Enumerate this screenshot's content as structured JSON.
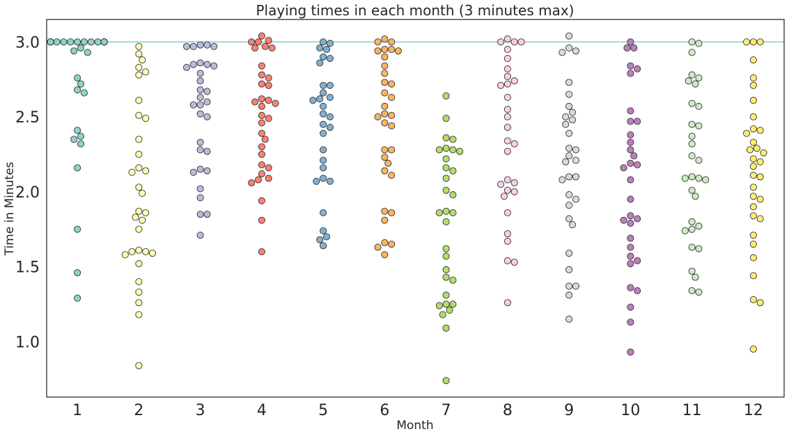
{
  "chart_data": {
    "type": "scatter",
    "subtype": "swarm",
    "title": "Playing times in each month (3 minutes max)",
    "xlabel": "Month",
    "ylabel": "Time in Minutes",
    "categories": [
      "1",
      "2",
      "3",
      "4",
      "5",
      "6",
      "7",
      "8",
      "9",
      "10",
      "11",
      "12"
    ],
    "ylim": [
      0.63,
      3.15
    ],
    "yticks": [
      "1.0",
      "1.5",
      "2.0",
      "2.5",
      "3.0"
    ],
    "yticks_values": [
      1.0,
      1.5,
      2.0,
      2.5,
      3.0
    ],
    "grid": false,
    "legend": "none",
    "reference_line": {
      "y": 3.0,
      "color": "#8dd3c7"
    },
    "point_edge_color": "#333333",
    "series": [
      {
        "category": "1",
        "color": "#8dd3c7",
        "values": [
          3.0,
          3.0,
          3.0,
          3.0,
          3.0,
          3.0,
          3.0,
          3.0,
          3.0,
          3.0,
          3.0,
          3.0,
          3.0,
          3.0,
          3.0,
          3.0,
          3.0,
          3.0,
          3.0,
          3.0,
          3.0,
          3.0,
          3.0,
          3.0,
          3.0,
          3.0,
          2.96,
          2.94,
          2.93,
          2.76,
          2.72,
          2.68,
          2.66,
          2.41,
          2.37,
          2.35,
          2.32,
          2.16,
          1.75,
          1.46,
          1.29
        ]
      },
      {
        "category": "2",
        "color": "#ffffb3",
        "values": [
          2.97,
          2.92,
          2.88,
          2.83,
          2.8,
          2.78,
          2.61,
          2.51,
          2.49,
          2.35,
          2.25,
          2.16,
          2.14,
          2.13,
          2.03,
          1.99,
          1.87,
          1.86,
          1.83,
          1.81,
          1.75,
          1.61,
          1.6,
          1.6,
          1.59,
          1.58,
          1.52,
          1.4,
          1.33,
          1.26,
          1.18,
          0.84
        ]
      },
      {
        "category": "3",
        "color": "#bebada",
        "values": [
          2.98,
          2.98,
          2.97,
          2.97,
          2.97,
          2.86,
          2.85,
          2.85,
          2.84,
          2.83,
          2.79,
          2.74,
          2.68,
          2.67,
          2.63,
          2.6,
          2.58,
          2.58,
          2.52,
          2.5,
          2.33,
          2.28,
          2.27,
          2.15,
          2.14,
          2.13,
          2.02,
          1.96,
          1.85,
          1.85,
          1.71
        ]
      },
      {
        "category": "4",
        "color": "#fb8072",
        "values": [
          3.04,
          3.01,
          3.0,
          3.0,
          2.97,
          2.96,
          2.96,
          2.84,
          2.78,
          2.76,
          2.72,
          2.71,
          2.62,
          2.61,
          2.6,
          2.59,
          2.57,
          2.51,
          2.49,
          2.46,
          2.39,
          2.35,
          2.3,
          2.25,
          2.18,
          2.16,
          2.12,
          2.09,
          2.08,
          2.06,
          1.94,
          1.81,
          1.6
        ]
      },
      {
        "category": "5",
        "color": "#80b1d3",
        "values": [
          3.0,
          2.99,
          2.96,
          2.95,
          2.9,
          2.89,
          2.86,
          2.71,
          2.71,
          2.66,
          2.63,
          2.62,
          2.61,
          2.57,
          2.52,
          2.5,
          2.45,
          2.43,
          2.39,
          2.28,
          2.21,
          2.16,
          2.09,
          2.07,
          2.07,
          1.86,
          1.74,
          1.7,
          1.68,
          1.64
        ]
      },
      {
        "category": "6",
        "color": "#fdb462",
        "values": [
          3.02,
          3.0,
          3.0,
          2.95,
          2.95,
          2.94,
          2.94,
          2.9,
          2.84,
          2.79,
          2.73,
          2.72,
          2.66,
          2.63,
          2.57,
          2.52,
          2.51,
          2.5,
          2.46,
          2.44,
          2.28,
          2.28,
          2.23,
          2.19,
          2.14,
          2.11,
          1.87,
          1.86,
          1.81,
          1.66,
          1.65,
          1.63,
          1.58
        ]
      },
      {
        "category": "7",
        "color": "#b3de69",
        "values": [
          2.64,
          2.49,
          2.36,
          2.35,
          2.29,
          2.28,
          2.28,
          2.27,
          2.22,
          2.16,
          2.14,
          2.09,
          2.01,
          1.98,
          1.87,
          1.86,
          1.86,
          1.8,
          1.62,
          1.57,
          1.48,
          1.43,
          1.41,
          1.31,
          1.25,
          1.25,
          1.24,
          1.21,
          1.18,
          1.09,
          0.74
        ]
      },
      {
        "category": "8",
        "color": "#fccde5",
        "values": [
          3.02,
          3.0,
          3.0,
          3.0,
          2.95,
          2.89,
          2.82,
          2.77,
          2.74,
          2.72,
          2.71,
          2.63,
          2.55,
          2.5,
          2.43,
          2.34,
          2.32,
          2.27,
          2.08,
          2.06,
          2.05,
          2.01,
          2.0,
          1.97,
          1.86,
          1.72,
          1.67,
          1.54,
          1.53,
          1.26
        ]
      },
      {
        "category": "9",
        "color": "#d9d9d9",
        "values": [
          3.04,
          2.96,
          2.94,
          2.93,
          2.73,
          2.65,
          2.57,
          2.53,
          2.5,
          2.48,
          2.45,
          2.39,
          2.29,
          2.28,
          2.24,
          2.21,
          2.2,
          2.1,
          2.1,
          2.08,
          1.98,
          1.95,
          1.91,
          1.82,
          1.78,
          1.59,
          1.48,
          1.37,
          1.37,
          1.31,
          1.15
        ]
      },
      {
        "category": "10",
        "color": "#bc80bd",
        "values": [
          3.0,
          2.96,
          2.96,
          2.84,
          2.82,
          2.79,
          2.54,
          2.47,
          2.47,
          2.38,
          2.33,
          2.28,
          2.24,
          2.19,
          2.18,
          2.16,
          2.08,
          1.95,
          1.84,
          1.82,
          1.81,
          1.79,
          1.69,
          1.63,
          1.57,
          1.54,
          1.52,
          1.36,
          1.34,
          1.23,
          1.13,
          0.93
        ]
      },
      {
        "category": "11",
        "color": "#ccebc5",
        "values": [
          3.0,
          2.99,
          2.93,
          2.78,
          2.76,
          2.74,
          2.72,
          2.59,
          2.57,
          2.45,
          2.44,
          2.37,
          2.32,
          2.24,
          2.21,
          2.1,
          2.09,
          2.09,
          2.08,
          2.01,
          1.97,
          1.8,
          1.77,
          1.75,
          1.74,
          1.63,
          1.62,
          1.47,
          1.43,
          1.34,
          1.33
        ]
      },
      {
        "category": "12",
        "color": "#ffed6f",
        "values": [
          3.0,
          3.0,
          3.0,
          2.88,
          2.76,
          2.71,
          2.61,
          2.5,
          2.42,
          2.41,
          2.39,
          2.33,
          2.29,
          2.28,
          2.26,
          2.22,
          2.2,
          2.17,
          2.11,
          2.1,
          2.03,
          1.97,
          1.95,
          1.9,
          1.84,
          1.82,
          1.71,
          1.65,
          1.56,
          1.44,
          1.28,
          1.26,
          0.95
        ]
      }
    ]
  }
}
